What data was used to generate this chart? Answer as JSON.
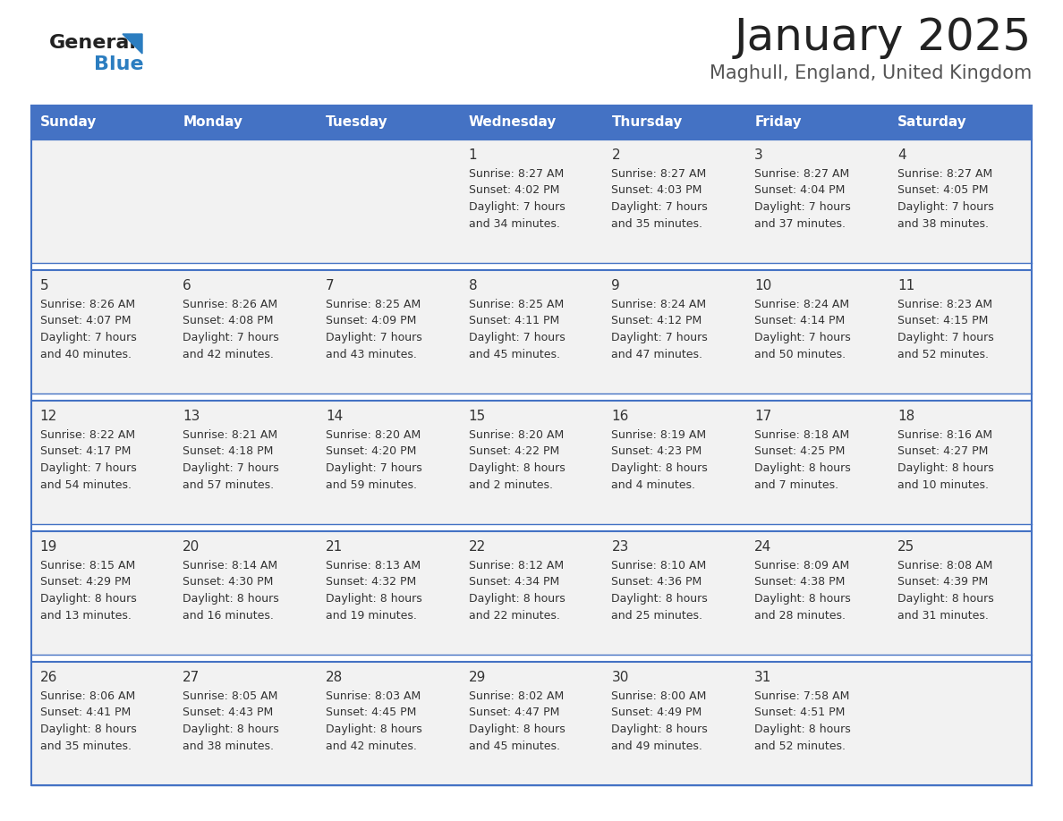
{
  "title": "January 2025",
  "subtitle": "Maghull, England, United Kingdom",
  "days_of_week": [
    "Sunday",
    "Monday",
    "Tuesday",
    "Wednesday",
    "Thursday",
    "Friday",
    "Saturday"
  ],
  "header_bg": "#4472C4",
  "header_text": "#FFFFFF",
  "row_bg": "#F2F2F2",
  "border_color": "#4472C4",
  "title_color": "#222222",
  "subtitle_color": "#555555",
  "cell_text_color": "#333333",
  "day_number_color": "#333333",
  "logo_general_color": "#222222",
  "logo_blue_color": "#2B7DC0",
  "logo_triangle_color": "#2B7DC0",
  "calendar": [
    [
      {
        "day": null,
        "sunrise": null,
        "sunset": null,
        "daylight": null
      },
      {
        "day": null,
        "sunrise": null,
        "sunset": null,
        "daylight": null
      },
      {
        "day": null,
        "sunrise": null,
        "sunset": null,
        "daylight": null
      },
      {
        "day": 1,
        "sunrise": "8:27 AM",
        "sunset": "4:02 PM",
        "daylight": "7 hours and 34 minutes."
      },
      {
        "day": 2,
        "sunrise": "8:27 AM",
        "sunset": "4:03 PM",
        "daylight": "7 hours and 35 minutes."
      },
      {
        "day": 3,
        "sunrise": "8:27 AM",
        "sunset": "4:04 PM",
        "daylight": "7 hours and 37 minutes."
      },
      {
        "day": 4,
        "sunrise": "8:27 AM",
        "sunset": "4:05 PM",
        "daylight": "7 hours and 38 minutes."
      }
    ],
    [
      {
        "day": 5,
        "sunrise": "8:26 AM",
        "sunset": "4:07 PM",
        "daylight": "7 hours and 40 minutes."
      },
      {
        "day": 6,
        "sunrise": "8:26 AM",
        "sunset": "4:08 PM",
        "daylight": "7 hours and 42 minutes."
      },
      {
        "day": 7,
        "sunrise": "8:25 AM",
        "sunset": "4:09 PM",
        "daylight": "7 hours and 43 minutes."
      },
      {
        "day": 8,
        "sunrise": "8:25 AM",
        "sunset": "4:11 PM",
        "daylight": "7 hours and 45 minutes."
      },
      {
        "day": 9,
        "sunrise": "8:24 AM",
        "sunset": "4:12 PM",
        "daylight": "7 hours and 47 minutes."
      },
      {
        "day": 10,
        "sunrise": "8:24 AM",
        "sunset": "4:14 PM",
        "daylight": "7 hours and 50 minutes."
      },
      {
        "day": 11,
        "sunrise": "8:23 AM",
        "sunset": "4:15 PM",
        "daylight": "7 hours and 52 minutes."
      }
    ],
    [
      {
        "day": 12,
        "sunrise": "8:22 AM",
        "sunset": "4:17 PM",
        "daylight": "7 hours and 54 minutes."
      },
      {
        "day": 13,
        "sunrise": "8:21 AM",
        "sunset": "4:18 PM",
        "daylight": "7 hours and 57 minutes."
      },
      {
        "day": 14,
        "sunrise": "8:20 AM",
        "sunset": "4:20 PM",
        "daylight": "7 hours and 59 minutes."
      },
      {
        "day": 15,
        "sunrise": "8:20 AM",
        "sunset": "4:22 PM",
        "daylight": "8 hours and 2 minutes."
      },
      {
        "day": 16,
        "sunrise": "8:19 AM",
        "sunset": "4:23 PM",
        "daylight": "8 hours and 4 minutes."
      },
      {
        "day": 17,
        "sunrise": "8:18 AM",
        "sunset": "4:25 PM",
        "daylight": "8 hours and 7 minutes."
      },
      {
        "day": 18,
        "sunrise": "8:16 AM",
        "sunset": "4:27 PM",
        "daylight": "8 hours and 10 minutes."
      }
    ],
    [
      {
        "day": 19,
        "sunrise": "8:15 AM",
        "sunset": "4:29 PM",
        "daylight": "8 hours and 13 minutes."
      },
      {
        "day": 20,
        "sunrise": "8:14 AM",
        "sunset": "4:30 PM",
        "daylight": "8 hours and 16 minutes."
      },
      {
        "day": 21,
        "sunrise": "8:13 AM",
        "sunset": "4:32 PM",
        "daylight": "8 hours and 19 minutes."
      },
      {
        "day": 22,
        "sunrise": "8:12 AM",
        "sunset": "4:34 PM",
        "daylight": "8 hours and 22 minutes."
      },
      {
        "day": 23,
        "sunrise": "8:10 AM",
        "sunset": "4:36 PM",
        "daylight": "8 hours and 25 minutes."
      },
      {
        "day": 24,
        "sunrise": "8:09 AM",
        "sunset": "4:38 PM",
        "daylight": "8 hours and 28 minutes."
      },
      {
        "day": 25,
        "sunrise": "8:08 AM",
        "sunset": "4:39 PM",
        "daylight": "8 hours and 31 minutes."
      }
    ],
    [
      {
        "day": 26,
        "sunrise": "8:06 AM",
        "sunset": "4:41 PM",
        "daylight": "8 hours and 35 minutes."
      },
      {
        "day": 27,
        "sunrise": "8:05 AM",
        "sunset": "4:43 PM",
        "daylight": "8 hours and 38 minutes."
      },
      {
        "day": 28,
        "sunrise": "8:03 AM",
        "sunset": "4:45 PM",
        "daylight": "8 hours and 42 minutes."
      },
      {
        "day": 29,
        "sunrise": "8:02 AM",
        "sunset": "4:47 PM",
        "daylight": "8 hours and 45 minutes."
      },
      {
        "day": 30,
        "sunrise": "8:00 AM",
        "sunset": "4:49 PM",
        "daylight": "8 hours and 49 minutes."
      },
      {
        "day": 31,
        "sunrise": "7:58 AM",
        "sunset": "4:51 PM",
        "daylight": "8 hours and 52 minutes."
      },
      {
        "day": null,
        "sunrise": null,
        "sunset": null,
        "daylight": null
      }
    ]
  ]
}
